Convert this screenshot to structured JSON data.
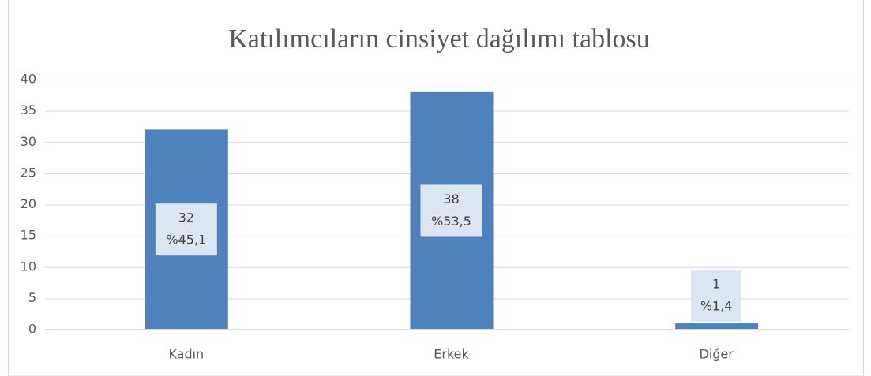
{
  "chart_data": {
    "type": "bar",
    "title": "Katılımcıların cinsiyet dağılımı tablosu",
    "categories": [
      "Kadın",
      "Erkek",
      "Diğer"
    ],
    "values": [
      32,
      38,
      1
    ],
    "percent_labels": [
      "%45,1",
      "%53,5",
      "%1,4"
    ],
    "color": "#4f81bd",
    "ylim": [
      0,
      40
    ],
    "yticks": [
      0,
      5,
      10,
      15,
      20,
      25,
      30,
      35,
      40
    ],
    "grid": true
  }
}
